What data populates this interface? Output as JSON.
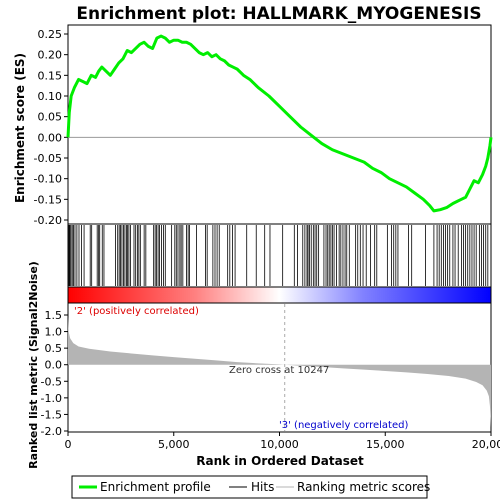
{
  "chart_data": {
    "type": "line",
    "title": "Enrichment plot: HALLMARK_MYOGENESIS",
    "es_panel": {
      "ylabel": "Enrichment score (ES)",
      "ylim": [
        -0.2,
        0.25
      ],
      "yticks": [
        "0.25",
        "0.20",
        "0.15",
        "0.10",
        "0.05",
        "0.00",
        "-0.05",
        "-0.10",
        "-0.15",
        "-0.20"
      ],
      "ytick_values": [
        0.25,
        0.2,
        0.15,
        0.1,
        0.05,
        0.0,
        -0.05,
        -0.1,
        -0.15,
        -0.2
      ],
      "series": [
        {
          "name": "Enrichment profile",
          "color": "#00ee00",
          "x": [
            0,
            60,
            150,
            300,
            500,
            700,
            900,
            1100,
            1300,
            1450,
            1600,
            1800,
            2000,
            2200,
            2400,
            2600,
            2800,
            3000,
            3200,
            3400,
            3600,
            3800,
            4000,
            4200,
            4400,
            4600,
            4800,
            5000,
            5200,
            5400,
            5600,
            5800,
            6000,
            6200,
            6400,
            6600,
            6800,
            7000,
            7200,
            7400,
            7600,
            7800,
            8000,
            8300,
            8600,
            9000,
            9500,
            10000,
            10500,
            11000,
            11500,
            12000,
            12500,
            13000,
            13500,
            14000,
            14400,
            14800,
            15200,
            15600,
            16000,
            16400,
            16800,
            17100,
            17300,
            17600,
            17900,
            18200,
            18400,
            18600,
            18800,
            19000,
            19200,
            19400,
            19600,
            19750,
            19850,
            19950,
            20000
          ],
          "y": [
            0.0,
            0.06,
            0.1,
            0.12,
            0.14,
            0.135,
            0.13,
            0.15,
            0.145,
            0.16,
            0.17,
            0.16,
            0.15,
            0.165,
            0.18,
            0.19,
            0.21,
            0.205,
            0.215,
            0.225,
            0.23,
            0.22,
            0.215,
            0.24,
            0.245,
            0.24,
            0.23,
            0.235,
            0.235,
            0.23,
            0.23,
            0.225,
            0.215,
            0.205,
            0.2,
            0.205,
            0.195,
            0.2,
            0.19,
            0.185,
            0.175,
            0.17,
            0.165,
            0.15,
            0.14,
            0.12,
            0.1,
            0.075,
            0.05,
            0.025,
            0.005,
            -0.015,
            -0.03,
            -0.04,
            -0.05,
            -0.06,
            -0.075,
            -0.085,
            -0.1,
            -0.11,
            -0.12,
            -0.135,
            -0.15,
            -0.165,
            -0.178,
            -0.175,
            -0.17,
            -0.16,
            -0.155,
            -0.15,
            -0.145,
            -0.125,
            -0.105,
            -0.11,
            -0.09,
            -0.07,
            -0.05,
            -0.02,
            0.0
          ]
        }
      ]
    },
    "hits": {
      "name": "Hits",
      "color": "#000000",
      "positions": [
        20,
        50,
        90,
        140,
        200,
        260,
        330,
        420,
        520,
        640,
        760,
        1050,
        1120,
        1380,
        1450,
        1500,
        1620,
        1700,
        2250,
        2350,
        2420,
        2480,
        2550,
        2620,
        2690,
        2760,
        2820,
        2880,
        2950,
        3120,
        3200,
        3280,
        3350,
        3420,
        3600,
        3680,
        4050,
        4120,
        4190,
        4260,
        4330,
        4420,
        4520,
        4600,
        4900,
        5050,
        5120,
        5200,
        5290,
        5350,
        5430,
        5600,
        5680,
        5750,
        6080,
        6500,
        6580,
        6850,
        6950,
        7050,
        7150,
        7550,
        7650,
        7780,
        7900,
        8450,
        8900,
        9300,
        9550,
        10150,
        10700,
        10850,
        11100,
        11200,
        11300,
        11350,
        11420,
        11500,
        11600,
        11680,
        11760,
        11850,
        12100,
        12200,
        12280,
        12350,
        12430,
        12500,
        12580,
        12700,
        12820,
        12900,
        13000,
        13100,
        13180,
        13300,
        13600,
        13700,
        13820,
        13950,
        14100,
        14300,
        14500,
        14600,
        15100,
        15300,
        15400,
        15500,
        15600,
        16100,
        16250,
        16900,
        17300,
        17450,
        17550,
        17650,
        17750,
        17850,
        17950,
        18050,
        18200,
        18300,
        18450,
        18600,
        18700,
        18800,
        18900,
        19000,
        19100,
        19200,
        19300,
        19450,
        19550,
        19650,
        19750,
        19850
      ]
    },
    "metric_panel": {
      "ylabel": "Ranked list metric (Signal2Noise)",
      "xlabel": "Rank in Ordered Dataset",
      "ylim": [
        -2.0,
        1.5
      ],
      "yticks": [
        "1.5",
        "1.0",
        "0.5",
        "0.0",
        "-0.5",
        "-1.0",
        "-1.5",
        "-2.0"
      ],
      "ytick_values": [
        1.5,
        1.0,
        0.5,
        0.0,
        -0.5,
        -1.0,
        -1.5,
        -2.0
      ],
      "series": [
        {
          "name": "Ranking metric scores",
          "color": "#b4b4b4",
          "x": [
            0,
            30,
            100,
            250,
            500,
            1000,
            2000,
            3000,
            4000,
            5000,
            6000,
            7000,
            8000,
            9000,
            10000,
            10247,
            11000,
            12000,
            13000,
            14000,
            15000,
            16000,
            17000,
            18000,
            18800,
            19300,
            19600,
            19800,
            19900,
            19950,
            19980,
            20000
          ],
          "y": [
            1.45,
            1.0,
            0.8,
            0.65,
            0.55,
            0.48,
            0.4,
            0.34,
            0.28,
            0.23,
            0.18,
            0.13,
            0.08,
            0.04,
            0.01,
            0.0,
            -0.03,
            -0.07,
            -0.11,
            -0.15,
            -0.19,
            -0.23,
            -0.28,
            -0.34,
            -0.42,
            -0.52,
            -0.62,
            -0.78,
            -0.95,
            -1.25,
            -1.6,
            -1.9
          ]
        }
      ],
      "zero_cross_label": "Zero cross at 10247",
      "zero_cross": 10247,
      "pos_label": "'2' (positively correlated)",
      "neg_label": "'3' (negatively correlated)",
      "pos_color": "#dd0000",
      "neg_color": "#0000cc"
    },
    "xlim": [
      0,
      20000
    ],
    "xticks": [
      "0",
      "5,000",
      "10,000",
      "15,000",
      "20,000"
    ],
    "xtick_values": [
      0,
      5000,
      10000,
      15000,
      20000
    ],
    "legend": {
      "placement": "bottom",
      "entries": [
        "Enrichment profile",
        "Hits",
        "Ranking metric scores"
      ]
    }
  }
}
